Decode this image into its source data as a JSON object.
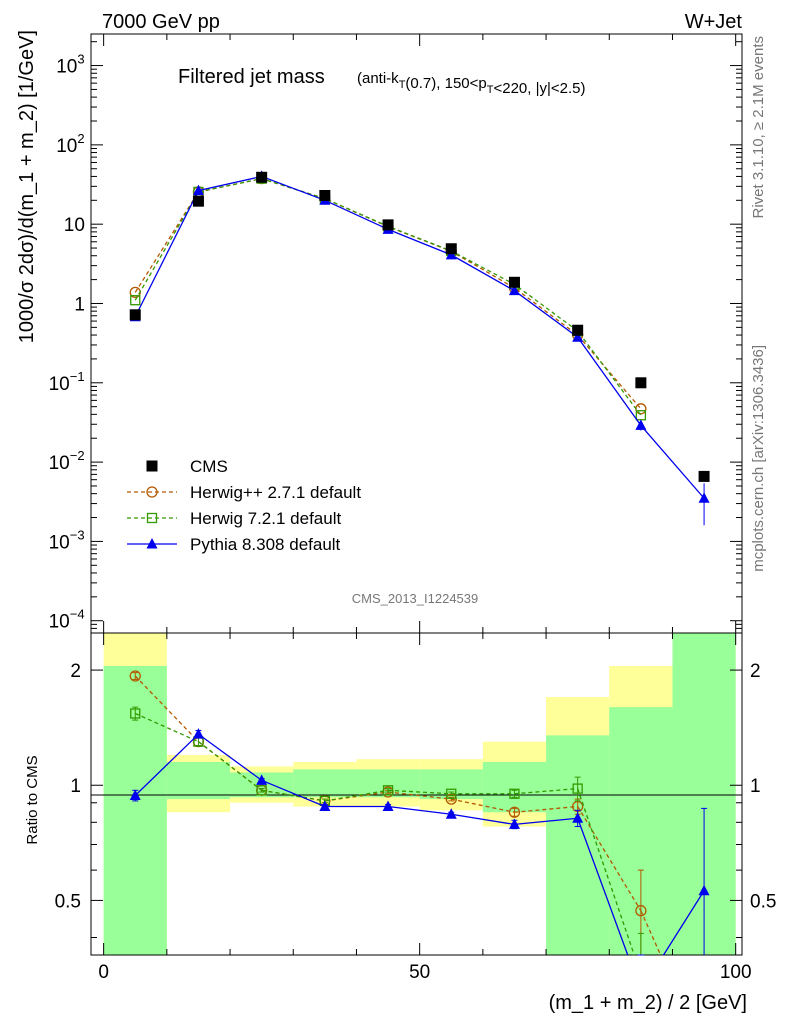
{
  "header": {
    "left": "7000 GeV pp",
    "right": "W+Jet"
  },
  "title": {
    "main": "Filtered jet mass",
    "sub": "(anti-k_T(0.7), 150<p_T<220, |y|<2.5)"
  },
  "watermark": "CMS_2013_I1224539",
  "side_top": "Rivet 3.1.10, ≥ 2.1M events",
  "side_bottom": "mcplots.cern.ch [arXiv:1306.3436]",
  "ylabel_main": "1000/σ 2dσ)/d(m_1 + m_2) [1/GeV]",
  "ylabel_ratio": "Ratio to CMS",
  "xlabel": "(m_1 + m_2) / 2 [GeV]",
  "legend": [
    {
      "label": "CMS",
      "color": "#000000",
      "marker": "square-filled"
    },
    {
      "label": "Herwig++ 2.7.1 default",
      "color": "#b35900",
      "marker": "circle-open",
      "dash": true
    },
    {
      "label": "Herwig 7.2.1 default",
      "color": "#339900",
      "marker": "square-open",
      "dash": true
    },
    {
      "label": "Pythia 8.308 default",
      "color": "#0000ee",
      "marker": "triangle-filled",
      "dash": false
    }
  ],
  "chart_data": {
    "type": "line",
    "x_range": [
      -2,
      101
    ],
    "main_y_scale": "log",
    "main_y_range": [
      7e-05,
      2500
    ],
    "main_y_ticks": [
      {
        "v": 0.0001,
        "base": "10",
        "exp": "−4"
      },
      {
        "v": 0.001,
        "base": "10",
        "exp": "−3"
      },
      {
        "v": 0.01,
        "base": "10",
        "exp": "−2"
      },
      {
        "v": 0.1,
        "base": "10",
        "exp": "−1"
      },
      {
        "v": 1,
        "base": "1",
        "exp": ""
      },
      {
        "v": 10,
        "base": "10",
        "exp": ""
      },
      {
        "v": 100,
        "base": "10",
        "exp": "2"
      },
      {
        "v": 1000,
        "base": "10",
        "exp": "3"
      }
    ],
    "ratio_y_scale": "log",
    "ratio_y_range": [
      0.36,
      2.5
    ],
    "ratio_y_ticks": [
      {
        "v": 0.5,
        "label": "0.5"
      },
      {
        "v": 1,
        "label": "1"
      },
      {
        "v": 2,
        "label": "2"
      }
    ],
    "x_ticks": [
      {
        "v": 0,
        "label": "0"
      },
      {
        "v": 50,
        "label": "50"
      },
      {
        "v": 100,
        "label": "100"
      }
    ],
    "x": [
      5,
      15,
      25,
      35,
      45,
      55,
      65,
      75,
      85,
      95
    ],
    "bin_edges": [
      0,
      10,
      20,
      30,
      40,
      50,
      60,
      70,
      80,
      90,
      100
    ],
    "cms": [
      0.72,
      19.5,
      39,
      23,
      9.8,
      4.9,
      1.85,
      0.46,
      0.1,
      0.0066
    ],
    "band_yellow": [
      [
        0,
        2.5
      ],
      [
        0.85,
        1.2
      ],
      [
        0.9,
        1.12
      ],
      [
        0.88,
        1.15
      ],
      [
        0.88,
        1.17
      ],
      [
        0.86,
        1.17
      ],
      [
        0.78,
        1.3
      ],
      [
        0.36,
        1.7
      ],
      [
        0.36,
        2.05
      ],
      [
        0.36,
        2.5
      ]
    ],
    "band_green": [
      [
        0.36,
        2.05
      ],
      [
        0.92,
        1.15
      ],
      [
        0.93,
        1.08
      ],
      [
        0.93,
        1.1
      ],
      [
        0.93,
        1.1
      ],
      [
        0.92,
        1.1
      ],
      [
        0.85,
        1.15
      ],
      [
        0.36,
        1.35
      ],
      [
        0.36,
        1.6
      ],
      [
        0.36,
        2.5
      ]
    ],
    "series": [
      {
        "name": "Herwig++ 2.7.1 default",
        "values": [
          1.38,
          25.5,
          37.5,
          21,
          9.3,
          4.55,
          1.57,
          0.4,
          0.047,
          null
        ],
        "ratio": [
          1.93,
          1.3,
          0.97,
          0.91,
          0.96,
          0.92,
          0.85,
          0.88,
          0.47,
          0.2
        ],
        "ratio_err": [
          0.04,
          0.03,
          0.01,
          0.01,
          0.01,
          0.01,
          0.02,
          0.04,
          0.13,
          0
        ]
      },
      {
        "name": "Herwig 7.2.1 default",
        "values": [
          1.1,
          25.5,
          37.5,
          21,
          9.4,
          4.6,
          1.74,
          0.45,
          0.039,
          null
        ],
        "ratio": [
          1.54,
          1.3,
          0.97,
          0.91,
          0.97,
          0.95,
          0.95,
          0.98,
          0.32,
          0.2
        ],
        "ratio_err": [
          0.06,
          0.03,
          0.01,
          0.01,
          0.01,
          0.01,
          0.02,
          0.07,
          0.09,
          0
        ]
      },
      {
        "name": "Pythia 8.308 default",
        "values": [
          0.68,
          26.5,
          40,
          20,
          8.6,
          4.1,
          1.45,
          0.375,
          0.029,
          0.0035
        ],
        "err_lo": [
          0,
          0,
          0,
          0,
          0,
          0,
          0,
          0,
          0.004,
          0.0019
        ],
        "err_hi": [
          0,
          0,
          0,
          0,
          0,
          0,
          0,
          0,
          0.004,
          0.0019
        ],
        "ratio": [
          0.94,
          1.36,
          1.03,
          0.88,
          0.88,
          0.84,
          0.79,
          0.82,
          0.29,
          0.53
        ],
        "ratio_err": [
          0.03,
          0.03,
          0.01,
          0.01,
          0.01,
          0.01,
          0.02,
          0.04,
          0.05,
          0.34
        ]
      }
    ]
  }
}
